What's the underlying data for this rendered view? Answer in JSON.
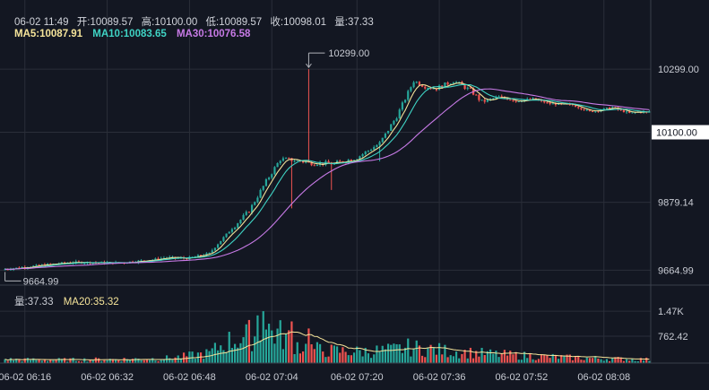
{
  "legend": {
    "date": "06-02 11:49",
    "open": "开:10089.57",
    "high": "高:10100.00",
    "low": "低:10089.57",
    "close": "收:10098.01",
    "volume": "量:37.33",
    "ma5": "MA5:10087.91",
    "ma10": "MA10:10083.65",
    "ma30": "MA30:10076.58"
  },
  "volume_legend": {
    "volume": "量:37.33",
    "ma20": "MA20:35.32"
  },
  "colors": {
    "background": "#131722",
    "up": "#26a69a",
    "down": "#ef5350",
    "ma5": "#f5e49a",
    "ma10": "#3fd3c4",
    "ma30": "#c77ae6",
    "vol_ma20": "#f5e49a",
    "grid": "#2a2e39",
    "text": "#c9ccd4"
  },
  "chart_data": [
    {
      "type": "candlestick",
      "y_ticks": [
        10299.0,
        10100.0,
        9879.14,
        9664.99
      ],
      "y_tick_labels": [
        "10299.00",
        "10100.00",
        "9879.14",
        "9664.99"
      ],
      "ylim": [
        9618,
        10370
      ],
      "current_price_label": "10100.00",
      "annotations": [
        {
          "label": "10299.00",
          "value": 10299.0,
          "at_index": 107,
          "kind": "high"
        },
        {
          "label": "9664.99",
          "value": 9664.99,
          "at_index": 0,
          "kind": "low"
        }
      ],
      "x_tick_labels": [
        "06-02 06:16",
        "06-02 06:32",
        "06-02 06:48",
        "06-02 07:04",
        "06-02 07:20",
        "06-02 07:36",
        "06-02 07:52",
        "06-02 08:08"
      ],
      "x_tick_indices": [
        7,
        36,
        65,
        94,
        124,
        153,
        182,
        211
      ],
      "anchors": [
        [
          0,
          9668
        ],
        [
          14,
          9682
        ],
        [
          24,
          9690
        ],
        [
          40,
          9688
        ],
        [
          52,
          9698
        ],
        [
          57,
          9705
        ],
        [
          64,
          9702
        ],
        [
          72,
          9718
        ],
        [
          78,
          9778
        ],
        [
          86,
          9852
        ],
        [
          92,
          9945
        ],
        [
          97,
          10015
        ],
        [
          102,
          10012
        ],
        [
          108,
          10003
        ],
        [
          116,
          10001
        ],
        [
          124,
          10020
        ],
        [
          132,
          10065
        ],
        [
          138,
          10150
        ],
        [
          144,
          10262
        ],
        [
          148,
          10245
        ],
        [
          152,
          10238
        ],
        [
          158,
          10262
        ],
        [
          164,
          10232
        ],
        [
          168,
          10196
        ],
        [
          174,
          10212
        ],
        [
          180,
          10198
        ],
        [
          186,
          10205
        ],
        [
          192,
          10190
        ],
        [
          200,
          10186
        ],
        [
          206,
          10165
        ],
        [
          214,
          10178
        ],
        [
          220,
          10160
        ],
        [
          224,
          10165
        ],
        [
          226,
          10163
        ]
      ]
    },
    {
      "type": "volume-bar",
      "y_ticks": [
        1470,
        762.42
      ],
      "y_tick_labels": [
        "1.47K",
        "762.42"
      ],
      "ylim": [
        0,
        1700
      ],
      "anchors": [
        [
          0,
          120
        ],
        [
          20,
          110
        ],
        [
          40,
          130
        ],
        [
          55,
          150
        ],
        [
          62,
          210
        ],
        [
          72,
          330
        ],
        [
          78,
          700
        ],
        [
          86,
          900
        ],
        [
          92,
          1150
        ],
        [
          98,
          900
        ],
        [
          104,
          560
        ],
        [
          112,
          420
        ],
        [
          124,
          380
        ],
        [
          136,
          430
        ],
        [
          142,
          520
        ],
        [
          148,
          480
        ],
        [
          156,
          400
        ],
        [
          164,
          350
        ],
        [
          172,
          300
        ],
        [
          180,
          260
        ],
        [
          190,
          220
        ],
        [
          200,
          180
        ],
        [
          212,
          150
        ],
        [
          226,
          120
        ]
      ]
    }
  ]
}
